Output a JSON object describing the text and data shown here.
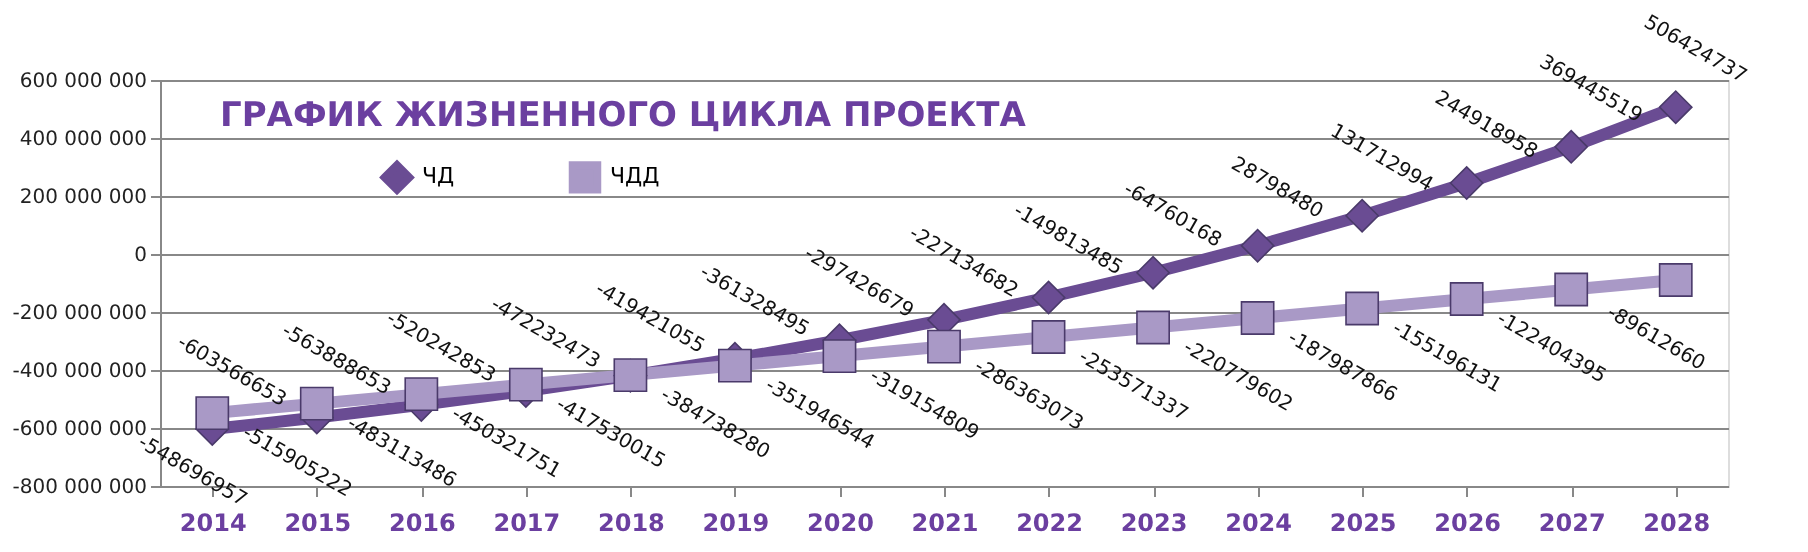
{
  "chart_data": {
    "type": "line",
    "title": "ГРАФИК ЖИЗНЕННОГО ЦИКЛА ПРОЕКТА",
    "categories": [
      "2014",
      "2015",
      "2016",
      "2017",
      "2018",
      "2019",
      "2020",
      "2021",
      "2022",
      "2023",
      "2024",
      "2025",
      "2026",
      "2027",
      "2028"
    ],
    "series": [
      {
        "name": "ЧД",
        "color": "#6a4c93",
        "marker": "diamond",
        "values": [
          -603566653,
          -563888653,
          -520242853,
          -472232473,
          -419421055,
          -361328495,
          -297426679,
          -227134682,
          -149813485,
          -64760168,
          28798480,
          131712994,
          244918958,
          369445519,
          506424737
        ]
      },
      {
        "name": "ЧДД",
        "color": "#a999c6",
        "marker": "square",
        "values": [
          -548696957,
          -515905222,
          -483113486,
          -450321751,
          -417530015,
          -384738280,
          -351946544,
          -319154809,
          -286363073,
          -253571337,
          -220779602,
          -187987866,
          -155196131,
          -122404395,
          -89612660
        ]
      }
    ],
    "ylim": [
      -800000000,
      600000000
    ],
    "yticks": [
      {
        "value": -800000000,
        "label": "-800 000 000"
      },
      {
        "value": -600000000,
        "label": "-600 000 000"
      },
      {
        "value": -400000000,
        "label": "-400 000 000"
      },
      {
        "value": -200000000,
        "label": "-200 000 000"
      },
      {
        "value": 0,
        "label": "0"
      },
      {
        "value": 200000000,
        "label": "200 000 000"
      },
      {
        "value": 400000000,
        "label": "400 000 000"
      },
      {
        "value": 600000000,
        "label": "600 000 000"
      }
    ],
    "grid": "y",
    "legend": "top left",
    "data_labels": true,
    "line_style": "solid"
  }
}
